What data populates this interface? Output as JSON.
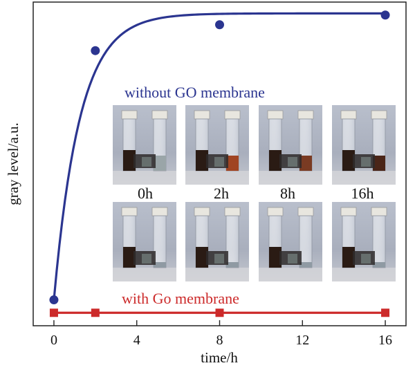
{
  "chart_data": {
    "type": "line",
    "xlabel": "time/h",
    "ylabel": "gray level/a.u.",
    "xlim": [
      -1,
      17
    ],
    "ylim": [
      0,
      1
    ],
    "x_ticks": [
      0,
      4,
      8,
      12,
      16
    ],
    "x_tick_labels": [
      "0",
      "4",
      "8",
      "12",
      "16"
    ],
    "grid": false,
    "series": [
      {
        "name": "without GO membrane",
        "color": "#2b3590",
        "marker": "circle",
        "fit": "exponential-saturation",
        "x": [
          0,
          2,
          8,
          16
        ],
        "y": [
          0.08,
          0.85,
          0.93,
          0.96
        ]
      },
      {
        "name": "with Go membrane",
        "color": "#cc2a2a",
        "marker": "square",
        "fit": "linear",
        "x": [
          0,
          2,
          8,
          16
        ],
        "y": [
          0.04,
          0.04,
          0.04,
          0.04
        ]
      }
    ],
    "photo_labels": [
      "0h",
      "2h",
      "8h",
      "16h"
    ]
  }
}
